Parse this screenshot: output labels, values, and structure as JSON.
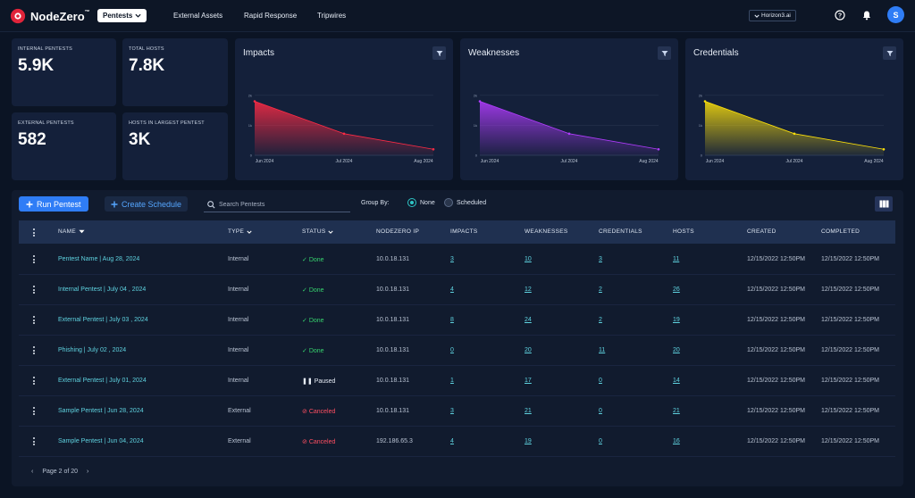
{
  "app": {
    "logo_text": "NodeZero",
    "logo_tm": "™",
    "nav": [
      "Pentests",
      "External Assets",
      "Rapid Response",
      "Tripwires"
    ],
    "org": "Horizon3.ai",
    "avatar_initial": "S"
  },
  "stats": [
    {
      "label": "INTERNAL PENTESTS",
      "value": "5.9K"
    },
    {
      "label": "TOTAL HOSTS",
      "value": "7.8K"
    },
    {
      "label": "EXTERNAL PENTESTS",
      "value": "582"
    },
    {
      "label": "HOSTS IN LARGEST PENTEST",
      "value": "3K"
    }
  ],
  "chart_data": [
    {
      "type": "area",
      "title": "Impacts",
      "categories": [
        "Jun 2024",
        "Jul 2024",
        "Aug 2024"
      ],
      "y_ticks": [
        "2k",
        "1k",
        "0"
      ],
      "ylim": [
        0,
        2500
      ],
      "series": [
        {
          "values": [
            1800,
            720,
            200
          ]
        }
      ],
      "color": "#ff2b45"
    },
    {
      "type": "area",
      "title": "Weaknesses",
      "categories": [
        "Jun 2024",
        "Jul 2024",
        "Aug 2024"
      ],
      "y_ticks": [
        "2k",
        "1k",
        "0"
      ],
      "ylim": [
        0,
        2500
      ],
      "series": [
        {
          "values": [
            1800,
            720,
            200
          ]
        }
      ],
      "color": "#b23cff"
    },
    {
      "type": "area",
      "title": "Credentials",
      "categories": [
        "Jun 2024",
        "Jul 2024",
        "Aug 2024"
      ],
      "y_ticks": [
        "2k",
        "1k",
        "0"
      ],
      "ylim": [
        0,
        2500
      ],
      "series": [
        {
          "values": [
            1800,
            720,
            200
          ]
        }
      ],
      "color": "#ffe20a"
    }
  ],
  "toolbar": {
    "run_label": "Run Pentest",
    "schedule_label": "Create Schedule",
    "search_placeholder": "Search Pentests",
    "group_by_label": "Group By:",
    "group_none": "None",
    "group_scheduled": "Scheduled",
    "group_selected": "None"
  },
  "table": {
    "headers": [
      "NAME",
      "TYPE",
      "STATUS",
      "NODEZERO IP",
      "IMPACTS",
      "WEAKNESSES",
      "CREDENTIALS",
      "HOSTS",
      "CREATED",
      "COMPLETED"
    ],
    "rows": [
      {
        "name": "Pentest Name | Aug 28, 2024",
        "type": "Internal",
        "status": "Done",
        "ip": "10.0.18.131",
        "impacts": "3",
        "weaknesses": "10",
        "credentials": "3",
        "hosts": "11",
        "created": "12/15/2022 12:50PM",
        "completed": "12/15/2022 12:50PM"
      },
      {
        "name": "Internal Pentest | July 04 , 2024",
        "type": "Internal",
        "status": "Done",
        "ip": "10.0.18.131",
        "impacts": "4",
        "weaknesses": "12",
        "credentials": "2",
        "hosts": "26",
        "created": "12/15/2022 12:50PM",
        "completed": "12/15/2022 12:50PM"
      },
      {
        "name": "External Pentest | July 03 , 2024",
        "type": "Internal",
        "status": "Done",
        "ip": "10.0.18.131",
        "impacts": "8",
        "weaknesses": "24",
        "credentials": "2",
        "hosts": "19",
        "created": "12/15/2022 12:50PM",
        "completed": "12/15/2022 12:50PM"
      },
      {
        "name": "Phishing | July 02 , 2024",
        "type": "Internal",
        "status": "Done",
        "ip": "10.0.18.131",
        "impacts": "0",
        "weaknesses": "20",
        "credentials": "11",
        "hosts": "20",
        "created": "12/15/2022 12:50PM",
        "completed": "12/15/2022 12:50PM"
      },
      {
        "name": "External Pentest | July 01, 2024",
        "type": "Internal",
        "status": "Paused",
        "ip": "10.0.18.131",
        "impacts": "1",
        "weaknesses": "17",
        "credentials": "0",
        "hosts": "14",
        "created": "12/15/2022 12:50PM",
        "completed": "12/15/2022 12:50PM"
      },
      {
        "name": "Sample Pentest | Jun 28, 2024",
        "type": "External",
        "status": "Canceled",
        "ip": "10.0.18.131",
        "impacts": "3",
        "weaknesses": "21",
        "credentials": "0",
        "hosts": "21",
        "created": "12/15/2022 12:50PM",
        "completed": "12/15/2022 12:50PM"
      },
      {
        "name": "Sample Pentest | Jun 04, 2024",
        "type": "External",
        "status": "Canceled",
        "ip": "192.186.65.3",
        "impacts": "4",
        "weaknesses": "19",
        "credentials": "0",
        "hosts": "16",
        "created": "12/15/2022 12:50PM",
        "completed": "12/15/2022 12:50PM"
      }
    ]
  },
  "pager": {
    "text": "Page 2 of 20",
    "prev": "‹",
    "next": "›"
  },
  "colors": {
    "accent": "#2f7df6",
    "link": "#5fd3e0",
    "done": "#36d36e",
    "canceled": "#ff4f62"
  }
}
